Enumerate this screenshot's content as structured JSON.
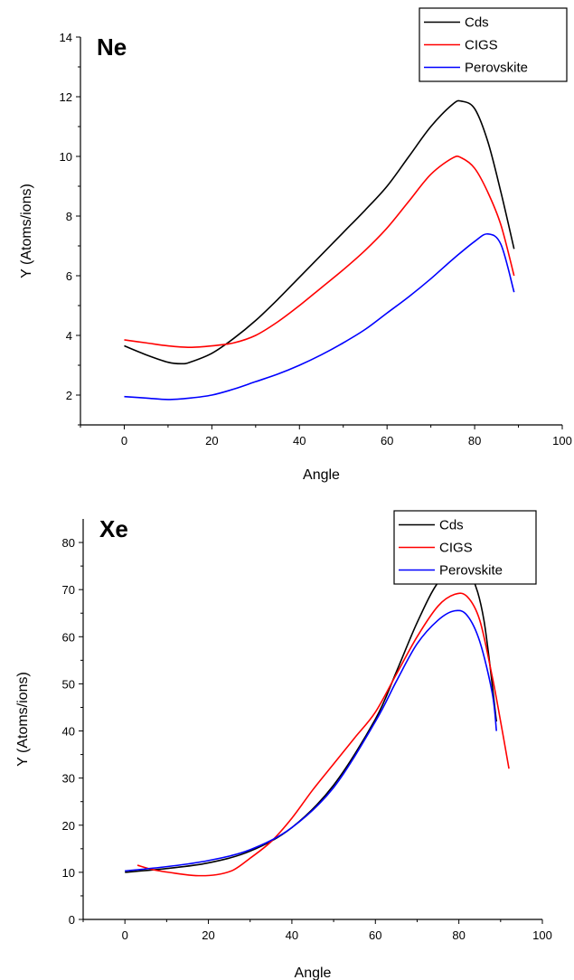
{
  "chart_data": [
    {
      "type": "line",
      "panel_label": "Ne",
      "xlabel": "Angle",
      "ylabel": "Y (Atoms/ions)",
      "xlim": [
        -10,
        100
      ],
      "ylim": [
        1,
        14
      ],
      "xticks": [
        0,
        20,
        40,
        60,
        80,
        100
      ],
      "yticks": [
        2,
        4,
        6,
        8,
        10,
        12,
        14
      ],
      "legend_position": "top-right",
      "series": [
        {
          "name": "Cds",
          "color": "#000000",
          "x": [
            0,
            5,
            10,
            13,
            15,
            20,
            25,
            30,
            35,
            40,
            45,
            50,
            55,
            60,
            65,
            70,
            75,
            77,
            80,
            83,
            86,
            89
          ],
          "y": [
            3.65,
            3.35,
            3.1,
            3.05,
            3.1,
            3.4,
            3.9,
            4.5,
            5.2,
            5.95,
            6.7,
            7.45,
            8.2,
            9.0,
            10.0,
            11.0,
            11.75,
            11.85,
            11.6,
            10.5,
            8.8,
            6.9
          ]
        },
        {
          "name": "CIGS",
          "color": "#ff0000",
          "x": [
            0,
            5,
            10,
            15,
            20,
            25,
            30,
            35,
            40,
            45,
            50,
            55,
            60,
            65,
            70,
            75,
            77,
            80,
            83,
            86,
            89
          ],
          "y": [
            3.85,
            3.75,
            3.65,
            3.6,
            3.65,
            3.75,
            4.0,
            4.45,
            5.0,
            5.6,
            6.2,
            6.85,
            7.6,
            8.5,
            9.4,
            9.95,
            9.95,
            9.6,
            8.8,
            7.7,
            6.0
          ]
        },
        {
          "name": "Perovskite",
          "color": "#0000ff",
          "x": [
            0,
            5,
            10,
            15,
            20,
            25,
            30,
            35,
            40,
            45,
            50,
            55,
            60,
            65,
            70,
            75,
            80,
            83,
            86,
            89
          ],
          "y": [
            1.95,
            1.9,
            1.85,
            1.9,
            2.0,
            2.2,
            2.45,
            2.7,
            3.0,
            3.35,
            3.75,
            4.2,
            4.75,
            5.3,
            5.9,
            6.55,
            7.15,
            7.4,
            7.05,
            5.45
          ]
        }
      ]
    },
    {
      "type": "line",
      "panel_label": "Xe",
      "xlabel": "Angle",
      "ylabel": "Y (Atoms/ions)",
      "xlim": [
        -10,
        100
      ],
      "ylim": [
        0,
        85
      ],
      "xticks": [
        0,
        20,
        40,
        60,
        80,
        100
      ],
      "yticks": [
        0,
        10,
        20,
        30,
        40,
        50,
        60,
        70,
        80
      ],
      "legend_position": "top-right",
      "series": [
        {
          "name": "Cds",
          "color": "#000000",
          "x": [
            0,
            10,
            20,
            30,
            40,
            50,
            60,
            65,
            70,
            75,
            80,
            83,
            86,
            89
          ],
          "y": [
            10,
            10.8,
            12,
            14.5,
            19.5,
            28.5,
            42.5,
            52.5,
            63,
            71.5,
            75,
            73,
            63.5,
            42
          ]
        },
        {
          "name": "CIGS",
          "color": "#ff0000",
          "x": [
            3,
            7,
            12,
            17,
            22,
            26,
            30,
            35,
            40,
            45,
            50,
            55,
            60,
            65,
            70,
            75,
            79,
            82,
            85,
            88,
            90,
            92
          ],
          "y": [
            11.5,
            10.5,
            9.8,
            9.3,
            9.5,
            10.5,
            13,
            16.5,
            21.5,
            27.5,
            33,
            38.5,
            44,
            52,
            60,
            66.5,
            69,
            68.5,
            63.5,
            51.5,
            42,
            32
          ]
        },
        {
          "name": "Perovskite",
          "color": "#0000ff",
          "x": [
            0,
            10,
            20,
            30,
            40,
            50,
            60,
            65,
            70,
            75,
            79,
            82,
            85,
            88,
            89
          ],
          "y": [
            10.3,
            11.2,
            12.5,
            14.8,
            19.5,
            28,
            42,
            50.5,
            58.5,
            63.5,
            65.5,
            64.5,
            59,
            48,
            40
          ]
        }
      ]
    }
  ]
}
